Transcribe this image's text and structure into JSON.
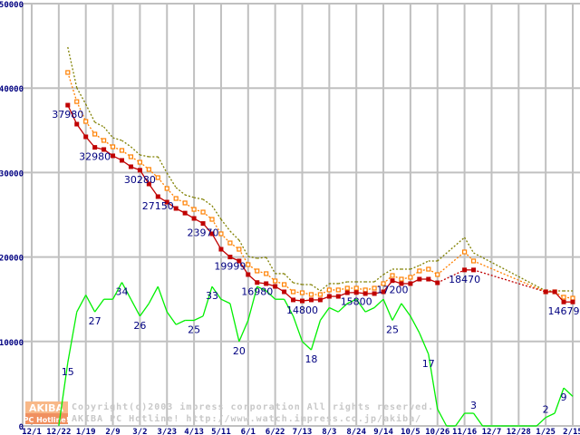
{
  "chart_data": {
    "type": "line",
    "title": "",
    "xlabel": "",
    "ylabel": "",
    "grid": true,
    "x_unit": "week index from 12/1 (1 week per step)",
    "x_tick_labels": [
      "12/1",
      "12/22",
      "1/19",
      "2/9",
      "3/2",
      "3/23",
      "4/13",
      "5/11",
      "6/1",
      "6/22",
      "7/13",
      "8/3",
      "8/24",
      "9/14",
      "10/5",
      "10/26",
      "11/16",
      "12/7",
      "12/28",
      "1/25",
      "2/15"
    ],
    "x_tick_weeks": [
      0,
      3,
      6,
      9,
      12,
      15,
      18,
      21,
      24,
      27,
      30,
      33,
      36,
      39,
      42,
      45,
      48,
      51,
      54,
      57,
      60
    ],
    "ylim": [
      0,
      50000
    ],
    "y_tick_labels": [
      "0",
      "10000",
      "20000",
      "30000",
      "40000",
      "50000"
    ],
    "y_tick_values": [
      0,
      10000,
      20000,
      30000,
      40000,
      50000
    ],
    "count_axis_range": [
      0,
      100
    ],
    "start_week": 4,
    "series": [
      {
        "name": "max_price",
        "axis": "price",
        "color": "#808000",
        "style": "dotted",
        "values": [
          44850,
          40030,
          38090,
          35950,
          35410,
          34120,
          33800,
          33050,
          32080,
          31870,
          31870,
          29940,
          28220,
          27360,
          27040,
          26830,
          26070,
          24460,
          23070,
          22000,
          20060,
          19850,
          19960,
          18030,
          18030,
          16950,
          16740,
          16740,
          15990,
          16850,
          16850,
          17060,
          17060,
          17060,
          17060,
          17920,
          18560,
          18560,
          18560,
          19000,
          19530,
          19530,
          null,
          null,
          22320,
          20490,
          null,
          null,
          null,
          null,
          null,
          null,
          null,
          15990,
          15990,
          15990,
          15990
        ]
      },
      {
        "name": "avg_price",
        "axis": "price",
        "color": "#ff8000",
        "style": "dotted-square",
        "values": [
          41850,
          38400,
          36050,
          34550,
          33800,
          33050,
          32620,
          31870,
          31220,
          30370,
          29400,
          28110,
          26930,
          26400,
          25640,
          25320,
          24460,
          22750,
          21670,
          20920,
          19100,
          18350,
          18030,
          17170,
          16740,
          15880,
          15770,
          15560,
          15560,
          16100,
          16100,
          16310,
          16310,
          16100,
          16310,
          16850,
          17810,
          17380,
          17600,
          18350,
          18560,
          17920,
          null,
          null,
          20600,
          19530,
          null,
          null,
          null,
          null,
          null,
          null,
          null,
          15880,
          15880,
          15240,
          15130
        ]
      },
      {
        "name": "min_price",
        "axis": "price",
        "color": "#c00000",
        "style": "solid-square",
        "values": [
          37980,
          35730,
          34230,
          32980,
          32730,
          31980,
          31440,
          30690,
          30280,
          28650,
          27150,
          26500,
          25750,
          25200,
          24570,
          23970,
          22750,
          20920,
          19999,
          19530,
          17920,
          16980,
          16850,
          16520,
          15880,
          14920,
          14800,
          14920,
          14920,
          15340,
          15340,
          15770,
          15800,
          15670,
          15670,
          15880,
          17200,
          16850,
          16850,
          17380,
          17380,
          16950,
          null,
          null,
          18470,
          18470,
          null,
          null,
          null,
          null,
          null,
          null,
          null,
          15880,
          15880,
          14679,
          14679
        ]
      },
      {
        "name": "shop_count",
        "axis": "count",
        "color": "#00f000",
        "style": "solid",
        "start_week": 3,
        "values": [
          0,
          15,
          27,
          31,
          27,
          30,
          30,
          34,
          30,
          26,
          29,
          33,
          27,
          24,
          25,
          25,
          26,
          33,
          30,
          29,
          20,
          25,
          33,
          32,
          30,
          30,
          26,
          20,
          18,
          25,
          28,
          27,
          29,
          30,
          27,
          28,
          30,
          25,
          29,
          26,
          22,
          17,
          4,
          0,
          0,
          3,
          3,
          0,
          0,
          0,
          0,
          0,
          0,
          0,
          2,
          3,
          9,
          7
        ]
      }
    ],
    "data_labels": [
      {
        "text": "37980",
        "week": 4,
        "series": "min_price"
      },
      {
        "text": "32980",
        "week": 7,
        "series": "min_price"
      },
      {
        "text": "30280",
        "week": 12,
        "series": "min_price"
      },
      {
        "text": "27150",
        "week": 14,
        "series": "min_price"
      },
      {
        "text": "23970",
        "week": 19,
        "series": "min_price"
      },
      {
        "text": "19999",
        "week": 22,
        "series": "min_price"
      },
      {
        "text": "16980",
        "week": 25,
        "series": "min_price"
      },
      {
        "text": "14800",
        "week": 30,
        "series": "min_price"
      },
      {
        "text": "15800",
        "week": 36,
        "series": "min_price"
      },
      {
        "text": "17200",
        "week": 40,
        "series": "min_price"
      },
      {
        "text": "18470",
        "week": 48,
        "series": "min_price"
      },
      {
        "text": "14679",
        "week": 59,
        "series": "min_price"
      },
      {
        "text": "15",
        "week": 4,
        "series": "shop_count"
      },
      {
        "text": "27",
        "week": 7,
        "series": "shop_count"
      },
      {
        "text": "34",
        "week": 10,
        "series": "shop_count"
      },
      {
        "text": "26",
        "week": 12,
        "series": "shop_count"
      },
      {
        "text": "25",
        "week": 18,
        "series": "shop_count"
      },
      {
        "text": "33",
        "week": 20,
        "series": "shop_count"
      },
      {
        "text": "20",
        "week": 23,
        "series": "shop_count"
      },
      {
        "text": "18",
        "week": 31,
        "series": "shop_count"
      },
      {
        "text": "25",
        "week": 40,
        "series": "shop_count"
      },
      {
        "text": "17",
        "week": 44,
        "series": "shop_count"
      },
      {
        "text": "3",
        "week": 49,
        "series": "shop_count"
      },
      {
        "text": "2",
        "week": 57,
        "series": "shop_count"
      },
      {
        "text": "9",
        "week": 59,
        "series": "shop_count"
      }
    ]
  },
  "watermark": {
    "logo_top": "AKIBA",
    "logo_bottom": "PC Hotline!",
    "line1": "Copyright(c)2003 impress corporation All rights reserved.",
    "line2": "AKIBA PC Hotline! http://www.watch.impress.co.jp/akiba/"
  }
}
